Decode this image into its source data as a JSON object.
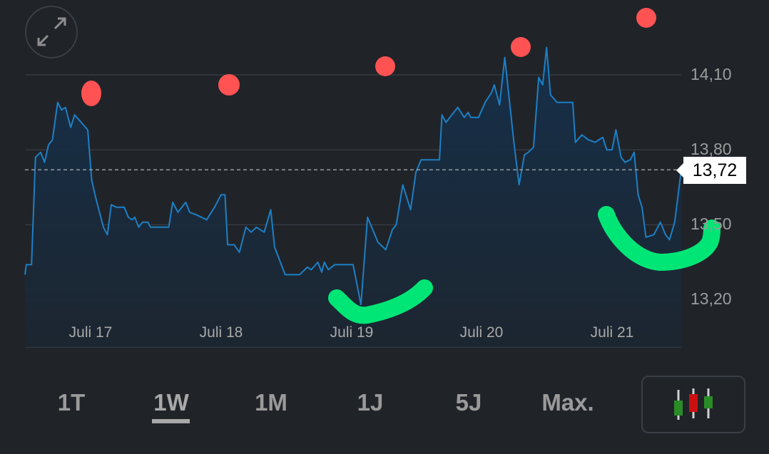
{
  "chart_data": {
    "type": "area",
    "x_tick_labels": [
      "Juli 17",
      "Juli 18",
      "Juli 19",
      "Juli 20",
      "Juli 21"
    ],
    "x_ticks": [
      17,
      18,
      19,
      20,
      21
    ],
    "xlim": [
      16.5,
      21.52
    ],
    "y_tick_labels": [
      "14,10",
      "13,80",
      "13,50",
      "13,20"
    ],
    "y_ticks": [
      14.1,
      13.8,
      13.5,
      13.2
    ],
    "ylim": [
      13.01,
      14.4
    ],
    "grid": true,
    "current_price": 13.72,
    "current_price_label": "13,72",
    "line_color": "#1d7fc4",
    "points": [
      [
        16.5,
        13.3
      ],
      [
        16.51,
        13.34
      ],
      [
        16.55,
        13.34
      ],
      [
        16.58,
        13.77
      ],
      [
        16.62,
        13.79
      ],
      [
        16.65,
        13.75
      ],
      [
        16.68,
        13.82
      ],
      [
        16.71,
        13.84
      ],
      [
        16.75,
        13.99
      ],
      [
        16.78,
        13.96
      ],
      [
        16.81,
        13.97
      ],
      [
        16.85,
        13.89
      ],
      [
        16.88,
        13.94
      ],
      [
        16.98,
        13.88
      ],
      [
        17.01,
        13.68
      ],
      [
        17.04,
        13.61
      ],
      [
        17.1,
        13.49
      ],
      [
        17.13,
        13.46
      ],
      [
        17.16,
        13.58
      ],
      [
        17.2,
        13.57
      ],
      [
        17.26,
        13.57
      ],
      [
        17.29,
        13.53
      ],
      [
        17.32,
        13.52
      ],
      [
        17.34,
        13.53
      ],
      [
        17.37,
        13.49
      ],
      [
        17.4,
        13.51
      ],
      [
        17.44,
        13.51
      ],
      [
        17.46,
        13.49
      ],
      [
        17.6,
        13.49
      ],
      [
        17.63,
        13.59
      ],
      [
        17.67,
        13.55
      ],
      [
        17.7,
        13.57
      ],
      [
        17.73,
        13.59
      ],
      [
        17.76,
        13.55
      ],
      [
        17.81,
        13.54
      ],
      [
        17.89,
        13.52
      ],
      [
        17.95,
        13.57
      ],
      [
        18.0,
        13.62
      ],
      [
        18.03,
        13.62
      ],
      [
        18.05,
        13.42
      ],
      [
        18.1,
        13.42
      ],
      [
        18.14,
        13.39
      ],
      [
        18.19,
        13.49
      ],
      [
        18.23,
        13.47
      ],
      [
        18.27,
        13.49
      ],
      [
        18.33,
        13.47
      ],
      [
        18.38,
        13.56
      ],
      [
        18.41,
        13.41
      ],
      [
        18.49,
        13.3
      ],
      [
        18.6,
        13.3
      ],
      [
        18.66,
        13.33
      ],
      [
        18.69,
        13.32
      ],
      [
        18.74,
        13.35
      ],
      [
        18.77,
        13.31
      ],
      [
        18.79,
        13.35
      ],
      [
        18.82,
        13.32
      ],
      [
        18.87,
        13.34
      ],
      [
        18.97,
        13.34
      ],
      [
        19.01,
        13.34
      ],
      [
        19.07,
        13.18
      ],
      [
        19.12,
        13.53
      ],
      [
        19.2,
        13.43
      ],
      [
        19.26,
        13.4
      ],
      [
        19.31,
        13.48
      ],
      [
        19.34,
        13.5
      ],
      [
        19.39,
        13.66
      ],
      [
        19.45,
        13.56
      ],
      [
        19.49,
        13.71
      ],
      [
        19.53,
        13.76
      ],
      [
        19.67,
        13.76
      ],
      [
        19.69,
        13.94
      ],
      [
        19.72,
        13.91
      ],
      [
        19.78,
        13.95
      ],
      [
        19.81,
        13.97
      ],
      [
        19.86,
        13.93
      ],
      [
        19.89,
        13.95
      ],
      [
        19.91,
        13.93
      ],
      [
        19.97,
        13.93
      ],
      [
        20.02,
        13.99
      ],
      [
        20.07,
        14.03
      ],
      [
        20.09,
        14.06
      ],
      [
        20.13,
        13.98
      ],
      [
        20.17,
        14.17
      ],
      [
        20.24,
        13.83
      ],
      [
        20.28,
        13.66
      ],
      [
        20.32,
        13.78
      ],
      [
        20.35,
        13.79
      ],
      [
        20.39,
        13.81
      ],
      [
        20.43,
        14.09
      ],
      [
        20.46,
        14.06
      ],
      [
        20.49,
        14.21
      ],
      [
        20.52,
        14.02
      ],
      [
        20.57,
        13.99
      ],
      [
        20.69,
        13.99
      ],
      [
        20.71,
        13.83
      ],
      [
        20.76,
        13.86
      ],
      [
        20.81,
        13.84
      ],
      [
        20.86,
        13.83
      ],
      [
        20.92,
        13.85
      ],
      [
        20.95,
        13.8
      ],
      [
        20.99,
        13.8
      ],
      [
        21.02,
        13.88
      ],
      [
        21.06,
        13.77
      ],
      [
        21.09,
        13.75
      ],
      [
        21.13,
        13.76
      ],
      [
        21.16,
        13.79
      ],
      [
        21.19,
        13.62
      ],
      [
        21.22,
        13.57
      ],
      [
        21.25,
        13.45
      ],
      [
        21.31,
        13.46
      ],
      [
        21.36,
        13.51
      ],
      [
        21.4,
        13.46
      ],
      [
        21.43,
        13.44
      ],
      [
        21.47,
        13.51
      ],
      [
        21.52,
        13.72
      ]
    ]
  },
  "controls": {
    "expand_icon": "expand-arrows-icon",
    "range_tabs": [
      {
        "label": "1T",
        "selected": false
      },
      {
        "label": "1W",
        "selected": true
      },
      {
        "label": "1M",
        "selected": false
      },
      {
        "label": "1J",
        "selected": false
      },
      {
        "label": "5J",
        "selected": false
      },
      {
        "label": "Max.",
        "selected": false
      }
    ],
    "chart_type_icon": "candlestick-icon"
  },
  "annotation_colors": {
    "dots": "#ff5252",
    "strokes": "#00e676"
  }
}
